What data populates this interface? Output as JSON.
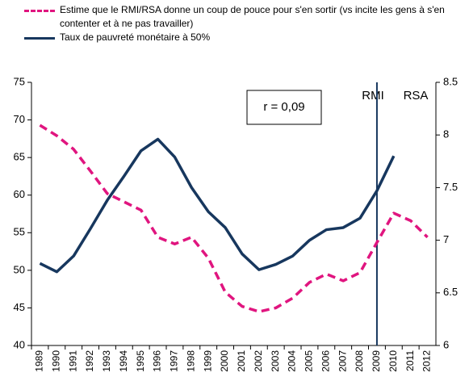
{
  "chart_data": {
    "type": "line",
    "categories": [
      "1989",
      "1990",
      "1991",
      "1992",
      "1993",
      "1994",
      "1995",
      "1996",
      "1997",
      "1998",
      "1999",
      "2000",
      "2001",
      "2002",
      "2003",
      "2004",
      "2005",
      "2006",
      "2007",
      "2008",
      "2009",
      "2010",
      "2011",
      "2012"
    ],
    "series": [
      {
        "name": "Estime que le RMI/RSA donne un coup de pouce pour s'en sortir (vs incite les gens à s'en contenter et à ne pas travailler)",
        "color": "#e0157f",
        "dashed": true,
        "values": [
          69.3,
          67.9,
          66.1,
          63.2,
          60.2,
          59.1,
          58.0,
          54.4,
          53.5,
          54.4,
          51.6,
          47.1,
          45.2,
          44.5,
          45.0,
          46.3,
          48.4,
          49.5,
          48.6,
          49.7,
          53.7,
          57.6,
          56.6,
          54.4
        ]
      },
      {
        "name": "Taux de pauvreté monétaire à 50%",
        "color": "#17375e",
        "axis": "y2",
        "values": [
          6.78,
          6.7,
          6.85,
          7.11,
          7.38,
          7.61,
          7.85,
          7.96,
          7.79,
          7.5,
          7.27,
          7.12,
          6.87,
          6.72,
          6.77,
          6.85,
          7.0,
          7.1,
          7.12,
          7.21,
          7.47,
          7.8,
          null,
          null
        ]
      }
    ],
    "ylim": [
      40,
      75
    ],
    "yticks": [
      40,
      45,
      50,
      55,
      60,
      65,
      70,
      75
    ],
    "y2lim": [
      6,
      8.5
    ],
    "y2ticks": [
      6,
      6.5,
      7,
      7.5,
      8,
      8.5
    ],
    "annotations": [
      "r = 0,09",
      "RMI",
      "RSA"
    ]
  }
}
